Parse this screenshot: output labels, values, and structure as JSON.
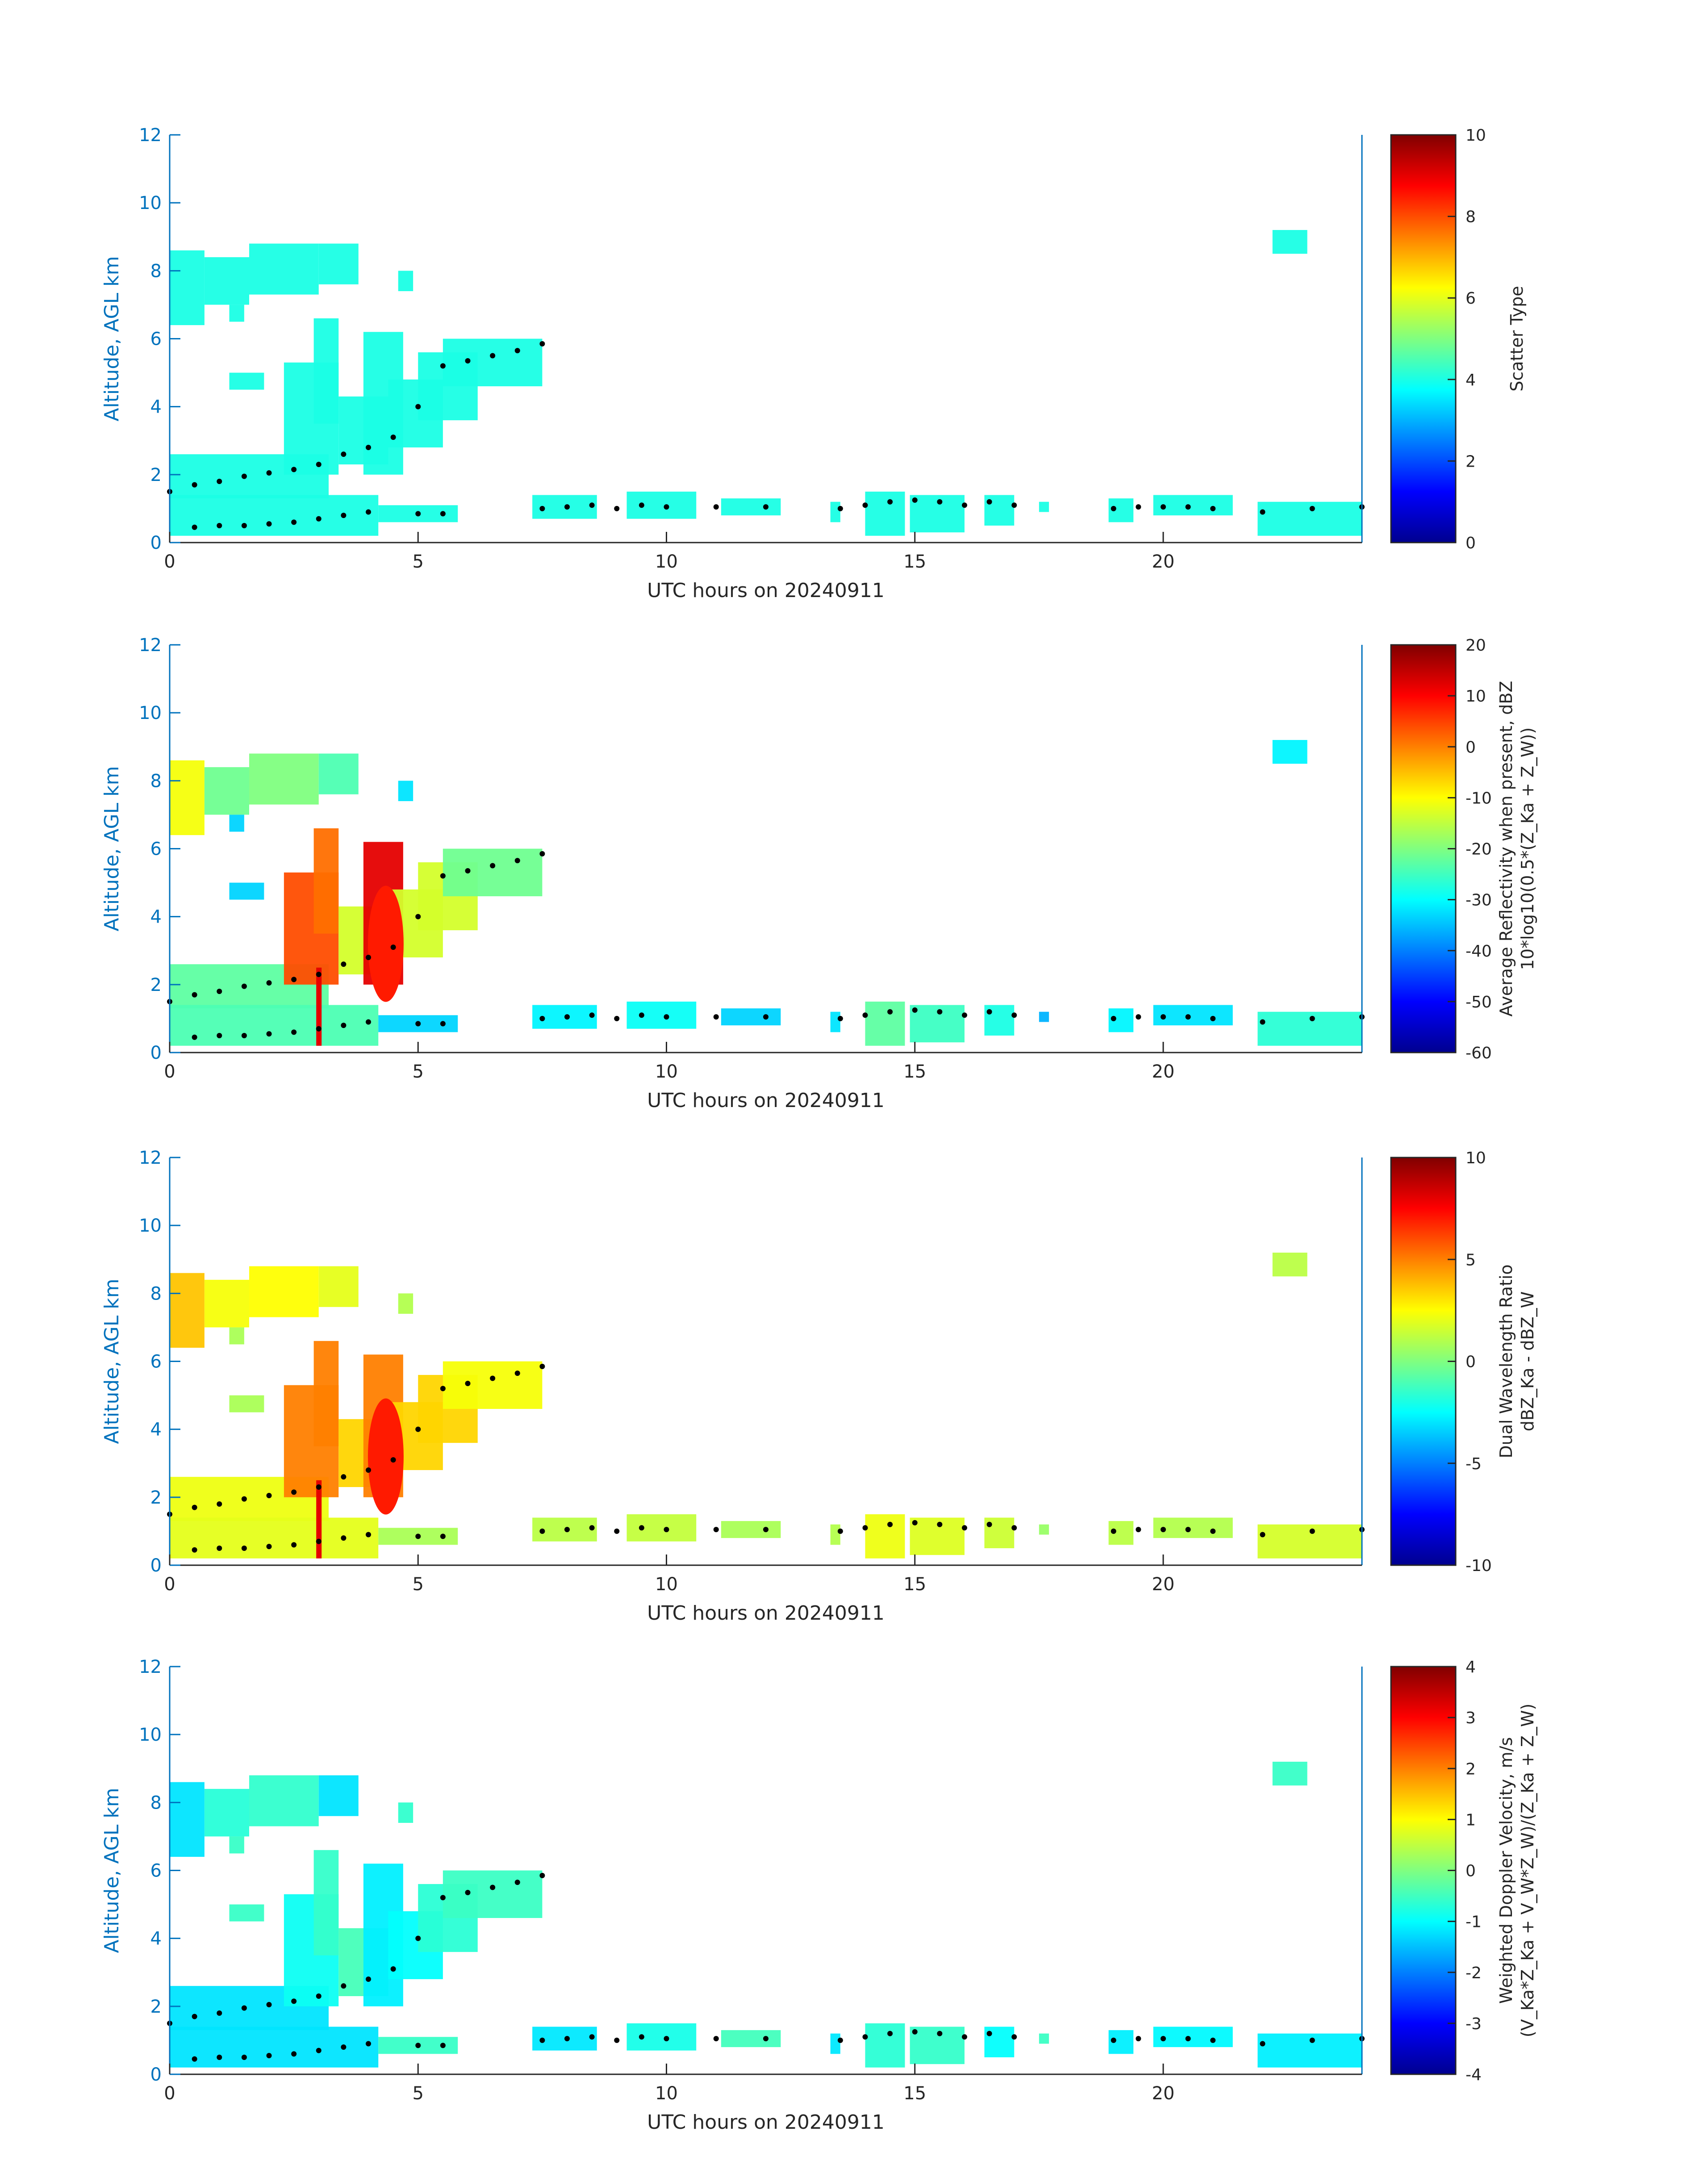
{
  "figure": {
    "date": "20240911",
    "xlabel": "UTC hours on 20240911",
    "ylabel": "Altitude, AGL km"
  },
  "colormap": "jet",
  "chart_data": [
    {
      "type": "heatmap",
      "xlabel": "UTC hours on 20240911",
      "ylabel": "Altitude, AGL km",
      "xlim": [
        0,
        24
      ],
      "ylim": [
        0,
        12
      ],
      "xticks": [
        0,
        5,
        10,
        15,
        20
      ],
      "yticks": [
        0,
        2,
        4,
        6,
        8,
        10,
        12
      ],
      "colorbar": {
        "label_lines": [
          "Scatter Type"
        ],
        "range": [
          0,
          10
        ],
        "ticks": [
          0,
          2,
          4,
          6,
          8,
          10
        ]
      }
    },
    {
      "type": "heatmap",
      "xlabel": "UTC hours on 20240911",
      "ylabel": "Altitude, AGL km",
      "xlim": [
        0,
        24
      ],
      "ylim": [
        0,
        12
      ],
      "xticks": [
        0,
        5,
        10,
        15,
        20
      ],
      "yticks": [
        0,
        2,
        4,
        6,
        8,
        10,
        12
      ],
      "colorbar": {
        "label_lines": [
          "Average Reflectivity when present, dBZ",
          "10*log10(0.5*(Z_Ka + Z_W))"
        ],
        "range": [
          -60,
          20
        ],
        "ticks": [
          -60,
          -50,
          -40,
          -30,
          -20,
          -10,
          0,
          10,
          20
        ]
      }
    },
    {
      "type": "heatmap",
      "xlabel": "UTC hours on 20240911",
      "ylabel": "Altitude, AGL km",
      "xlim": [
        0,
        24
      ],
      "ylim": [
        0,
        12
      ],
      "xticks": [
        0,
        5,
        10,
        15,
        20
      ],
      "yticks": [
        0,
        2,
        4,
        6,
        8,
        10,
        12
      ],
      "colorbar": {
        "label_lines": [
          "Dual Wavelength Ratio",
          "dBZ_Ka - dBZ_W"
        ],
        "range": [
          -10,
          10
        ],
        "ticks": [
          -10,
          -5,
          0,
          5,
          10
        ]
      }
    },
    {
      "type": "heatmap",
      "xlabel": "UTC hours on 20240911",
      "ylabel": "Altitude, AGL km",
      "xlim": [
        0,
        24
      ],
      "ylim": [
        0,
        12
      ],
      "xticks": [
        0,
        5,
        10,
        15,
        20
      ],
      "yticks": [
        0,
        2,
        4,
        6,
        8,
        10,
        12
      ],
      "colorbar": {
        "label_lines": [
          "Weighted Doppler Velocity, m/s",
          "(V_Ka*Z_Ka + V_W*Z_W)/(Z_Ka + Z_W)"
        ],
        "range": [
          -4,
          4
        ],
        "ticks": [
          -4,
          -3,
          -2,
          -1,
          0,
          1,
          2,
          3,
          4
        ]
      }
    }
  ],
  "cloud_base_points": {
    "upper_track": [
      [
        0.0,
        1.5
      ],
      [
        0.5,
        1.7
      ],
      [
        1.0,
        1.8
      ],
      [
        1.5,
        1.95
      ],
      [
        2.0,
        2.05
      ],
      [
        2.5,
        2.15
      ],
      [
        3.0,
        2.3
      ],
      [
        3.5,
        2.6
      ],
      [
        4.0,
        2.8
      ],
      [
        4.5,
        3.1
      ],
      [
        5.0,
        4.0
      ],
      [
        5.5,
        5.2
      ],
      [
        6.0,
        5.35
      ],
      [
        6.5,
        5.5
      ],
      [
        7.0,
        5.65
      ],
      [
        7.5,
        5.85
      ]
    ],
    "lower_track": [
      [
        0.5,
        0.45
      ],
      [
        1.0,
        0.5
      ],
      [
        1.5,
        0.5
      ],
      [
        2.0,
        0.55
      ],
      [
        2.5,
        0.6
      ],
      [
        3.0,
        0.7
      ],
      [
        3.5,
        0.8
      ],
      [
        4.0,
        0.9
      ],
      [
        5.0,
        0.85
      ],
      [
        5.5,
        0.85
      ],
      [
        7.5,
        1.0
      ],
      [
        8.0,
        1.05
      ],
      [
        8.5,
        1.1
      ],
      [
        9.0,
        1.0
      ],
      [
        9.5,
        1.1
      ],
      [
        10.0,
        1.05
      ],
      [
        11.0,
        1.05
      ],
      [
        12.0,
        1.05
      ],
      [
        13.5,
        1.0
      ],
      [
        14.0,
        1.1
      ],
      [
        14.5,
        1.2
      ],
      [
        15.0,
        1.25
      ],
      [
        15.5,
        1.2
      ],
      [
        16.0,
        1.1
      ],
      [
        16.5,
        1.2
      ],
      [
        17.0,
        1.1
      ],
      [
        19.0,
        1.0
      ],
      [
        19.5,
        1.05
      ],
      [
        20.0,
        1.05
      ],
      [
        20.5,
        1.05
      ],
      [
        21.0,
        1.0
      ],
      [
        22.0,
        0.9
      ],
      [
        23.0,
        1.0
      ],
      [
        24.0,
        1.05
      ]
    ]
  }
}
